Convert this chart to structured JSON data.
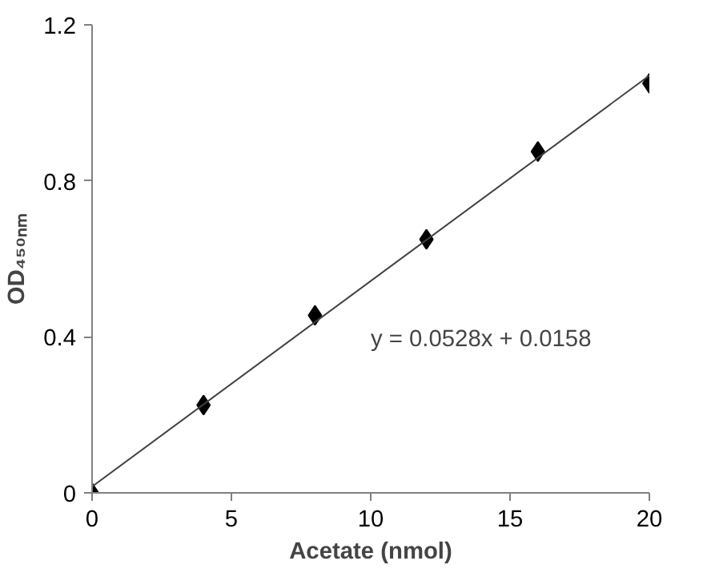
{
  "chart_data": {
    "type": "scatter",
    "xlabel": "Acetate (nmol)",
    "ylabel": "OD₄₅₀ₙₘ",
    "x": [
      0,
      4,
      8,
      12,
      16,
      20
    ],
    "series": [
      {
        "color": "#000000",
        "marker": "diamond",
        "values": [
          0,
          0.225,
          0.455,
          0.65,
          0.875,
          1.05
        ]
      },
      {
        "type": "line",
        "color": "#404040",
        "marker": "none",
        "line_style": "solid",
        "x": [
          0,
          20
        ],
        "values": [
          0.016,
          1.07
        ]
      }
    ],
    "annotations": [
      "y = 0.0528x + 0.0158"
    ],
    "xlim": [
      0,
      20
    ],
    "ylim": [
      0,
      1.2
    ],
    "xticks": [
      0,
      5,
      10,
      15,
      20
    ],
    "yticks": [
      0,
      0.4,
      0.8,
      1.2
    ],
    "grid": false
  }
}
